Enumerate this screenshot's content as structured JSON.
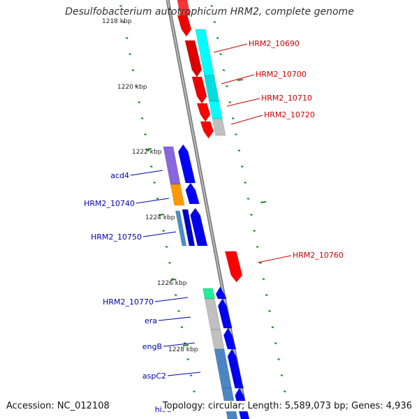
{
  "title": "Desulfobacterium autotrophicum HRM2, complete genome",
  "footer": {
    "accession": "Accession: NC_012108",
    "summary": "Topology: circular; Length: 5,589,073 bp; Genes: 4,936"
  },
  "colors": {
    "forward_cds": "#ff0000",
    "reverse_cds": "#0000ff",
    "backbone": "#999999",
    "tick": "#228b22",
    "forward_label": "#cc0000",
    "reverse_label": "#0000aa"
  },
  "kbp_labels": [
    "1218 kbp",
    "1220 kbp",
    "1222 kbp",
    "1224 kbp",
    "1226 kbp",
    "1228 kbp"
  ],
  "forward_genes": [
    "HRM2_10690",
    "HRM2_10700",
    "HRM2_10710",
    "HRM2_10720",
    "HRM2_10760"
  ],
  "reverse_genes": [
    "acd4",
    "HRM2_10740",
    "HRM2_10750",
    "HRM2_10770",
    "era",
    "engB",
    "aspC2",
    "hisG"
  ]
}
